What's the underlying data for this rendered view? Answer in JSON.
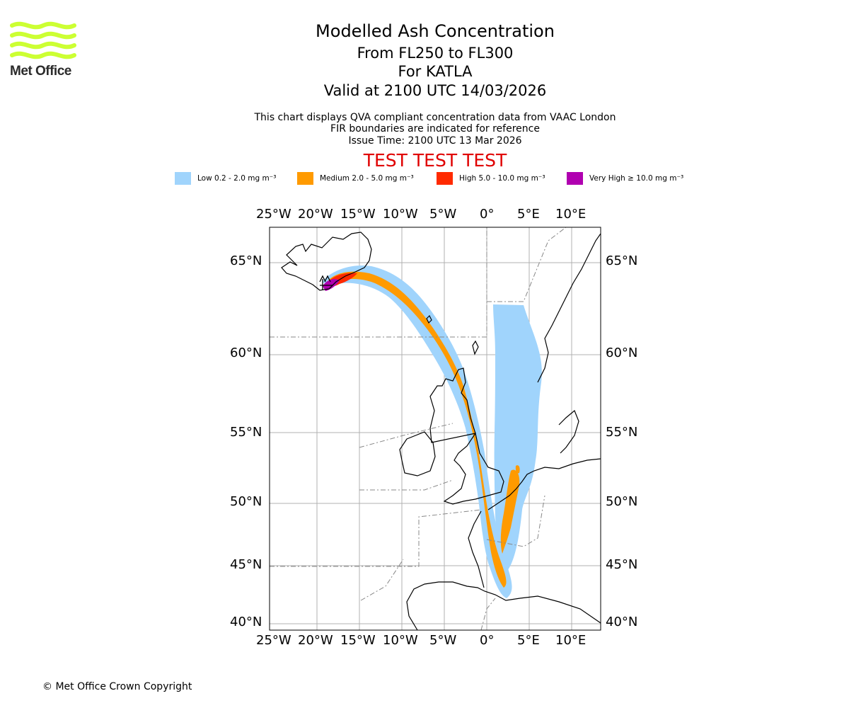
{
  "logo": {
    "text": "Met Office",
    "wave_color": "#ccff33"
  },
  "title": {
    "main": "Modelled Ash Concentration",
    "levels": "From FL250 to FL300",
    "volcano": "For KATLA",
    "valid": "Valid at 2100 UTC 14/03/2026"
  },
  "subtitle": {
    "line1": "This chart displays QVA compliant concentration data from VAAC London",
    "line2": "FIR boundaries are indicated for reference",
    "issue": "Issue Time: 2100 UTC 13 Mar 2026"
  },
  "test_banner": "TEST TEST TEST",
  "legend": [
    {
      "label": "Low 0.2 - 2.0 mg m⁻³",
      "color": "#a0d4fc"
    },
    {
      "label": "Medium 2.0 - 5.0 mg m⁻³",
      "color": "#ff9a00"
    },
    {
      "label": "High 5.0 - 10.0 mg m⁻³",
      "color": "#ff2a00"
    },
    {
      "label": "Very High  ≥  10.0 mg m⁻³",
      "color": "#b000b0"
    }
  ],
  "axes": {
    "lon_labels": [
      "25°W",
      "20°W",
      "15°W",
      "10°W",
      "5°W",
      "0°",
      "5°E",
      "10°E"
    ],
    "lat_labels": [
      "65°N",
      "60°N",
      "55°N",
      "50°N",
      "45°N",
      "40°N"
    ]
  },
  "copyright": "© Met Office Crown Copyright"
}
